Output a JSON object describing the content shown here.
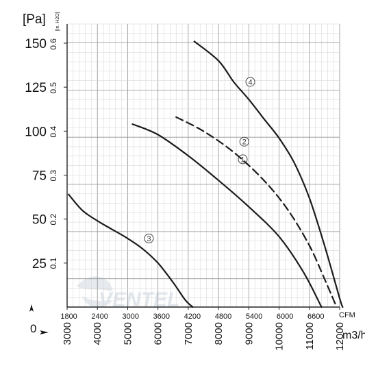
{
  "chart_data": {
    "type": "line",
    "x_unit_primary": "m3/h",
    "x_unit_secondary": "CFM",
    "y_unit_primary": "[Pa]",
    "y_unit_secondary": "[in. H2O]",
    "xlim": [
      3000,
      12000
    ],
    "ylim": [
      0,
      150
    ],
    "x_ticks_m3h": [
      3000,
      4000,
      5000,
      6000,
      7000,
      8000,
      9000,
      10000,
      11000,
      12000
    ],
    "x_ticks_cfm": [
      1800,
      2400,
      3000,
      3600,
      4200,
      4800,
      5400,
      6000,
      6600
    ],
    "y_ticks_pa": [
      25,
      50,
      75,
      100,
      125,
      150
    ],
    "y_ticks_in": [
      0.1,
      0.2,
      0.3,
      0.4,
      0.5,
      0.6
    ],
    "zero_label": "0",
    "grid": true,
    "watermark": "VENTEL",
    "series": [
      {
        "name": "①",
        "style": "solid",
        "label_at": [
          8800,
          84
        ],
        "points": [
          [
            5160,
            104
          ],
          [
            6000,
            98
          ],
          [
            7000,
            86
          ],
          [
            8000,
            72
          ],
          [
            9000,
            57
          ],
          [
            10000,
            40
          ],
          [
            10800,
            20
          ],
          [
            11400,
            0
          ]
        ]
      },
      {
        "name": "②",
        "style": "dashed",
        "label_at": [
          8850,
          94
        ],
        "points": [
          [
            6600,
            108
          ],
          [
            7500,
            100
          ],
          [
            8500,
            88
          ],
          [
            9500,
            72
          ],
          [
            10300,
            55
          ],
          [
            11000,
            35
          ],
          [
            11500,
            16
          ],
          [
            11900,
            0
          ]
        ]
      },
      {
        "name": "③",
        "style": "solid",
        "label_at": [
          5700,
          39
        ],
        "points": [
          [
            3050,
            64
          ],
          [
            3500,
            55
          ],
          [
            4000,
            49
          ],
          [
            4500,
            44
          ],
          [
            5000,
            39
          ],
          [
            5500,
            33
          ],
          [
            6000,
            25
          ],
          [
            6500,
            14
          ],
          [
            6900,
            4
          ],
          [
            7150,
            0
          ]
        ]
      },
      {
        "name": "④",
        "style": "solid",
        "label_at": [
          9050,
          128
        ],
        "points": [
          [
            7200,
            151
          ],
          [
            8000,
            140
          ],
          [
            8500,
            128
          ],
          [
            9000,
            118
          ],
          [
            9500,
            107
          ],
          [
            10000,
            96
          ],
          [
            10500,
            82
          ],
          [
            11000,
            62
          ],
          [
            11500,
            35
          ],
          [
            12000,
            5
          ],
          [
            12100,
            0
          ]
        ]
      }
    ]
  }
}
